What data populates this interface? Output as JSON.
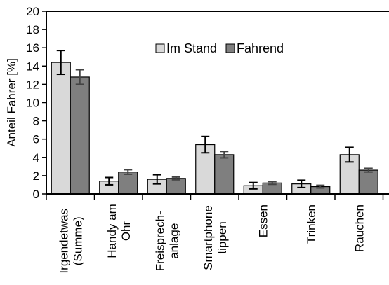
{
  "chart_data": {
    "type": "bar",
    "title": "",
    "xlabel": "",
    "ylabel": "Anteil Fahrer [%]",
    "ylim": [
      0,
      20
    ],
    "yticks": [
      0,
      2,
      4,
      6,
      8,
      10,
      12,
      14,
      16,
      18,
      20
    ],
    "grid": false,
    "legend_position": "top-center",
    "categories": [
      [
        "Irgendetwas",
        "(Summe)"
      ],
      [
        "Handy am",
        "Ohr"
      ],
      [
        "Freisprech-",
        "anlage"
      ],
      [
        "Smartphone",
        "tippen"
      ],
      [
        "Essen"
      ],
      [
        "Trinken"
      ],
      [
        "Rauchen"
      ]
    ],
    "series": [
      {
        "name": "Im Stand",
        "color": "#d9d9d9",
        "values": [
          14.4,
          1.4,
          1.6,
          5.4,
          0.9,
          1.1,
          4.3
        ],
        "errors": [
          1.3,
          0.4,
          0.5,
          0.9,
          0.35,
          0.4,
          0.8
        ]
      },
      {
        "name": "Fahrend",
        "color": "#7f7f7f",
        "values": [
          12.8,
          2.4,
          1.7,
          4.3,
          1.2,
          0.8,
          2.6
        ],
        "errors": [
          0.8,
          0.25,
          0.15,
          0.35,
          0.15,
          0.15,
          0.2
        ]
      }
    ]
  }
}
